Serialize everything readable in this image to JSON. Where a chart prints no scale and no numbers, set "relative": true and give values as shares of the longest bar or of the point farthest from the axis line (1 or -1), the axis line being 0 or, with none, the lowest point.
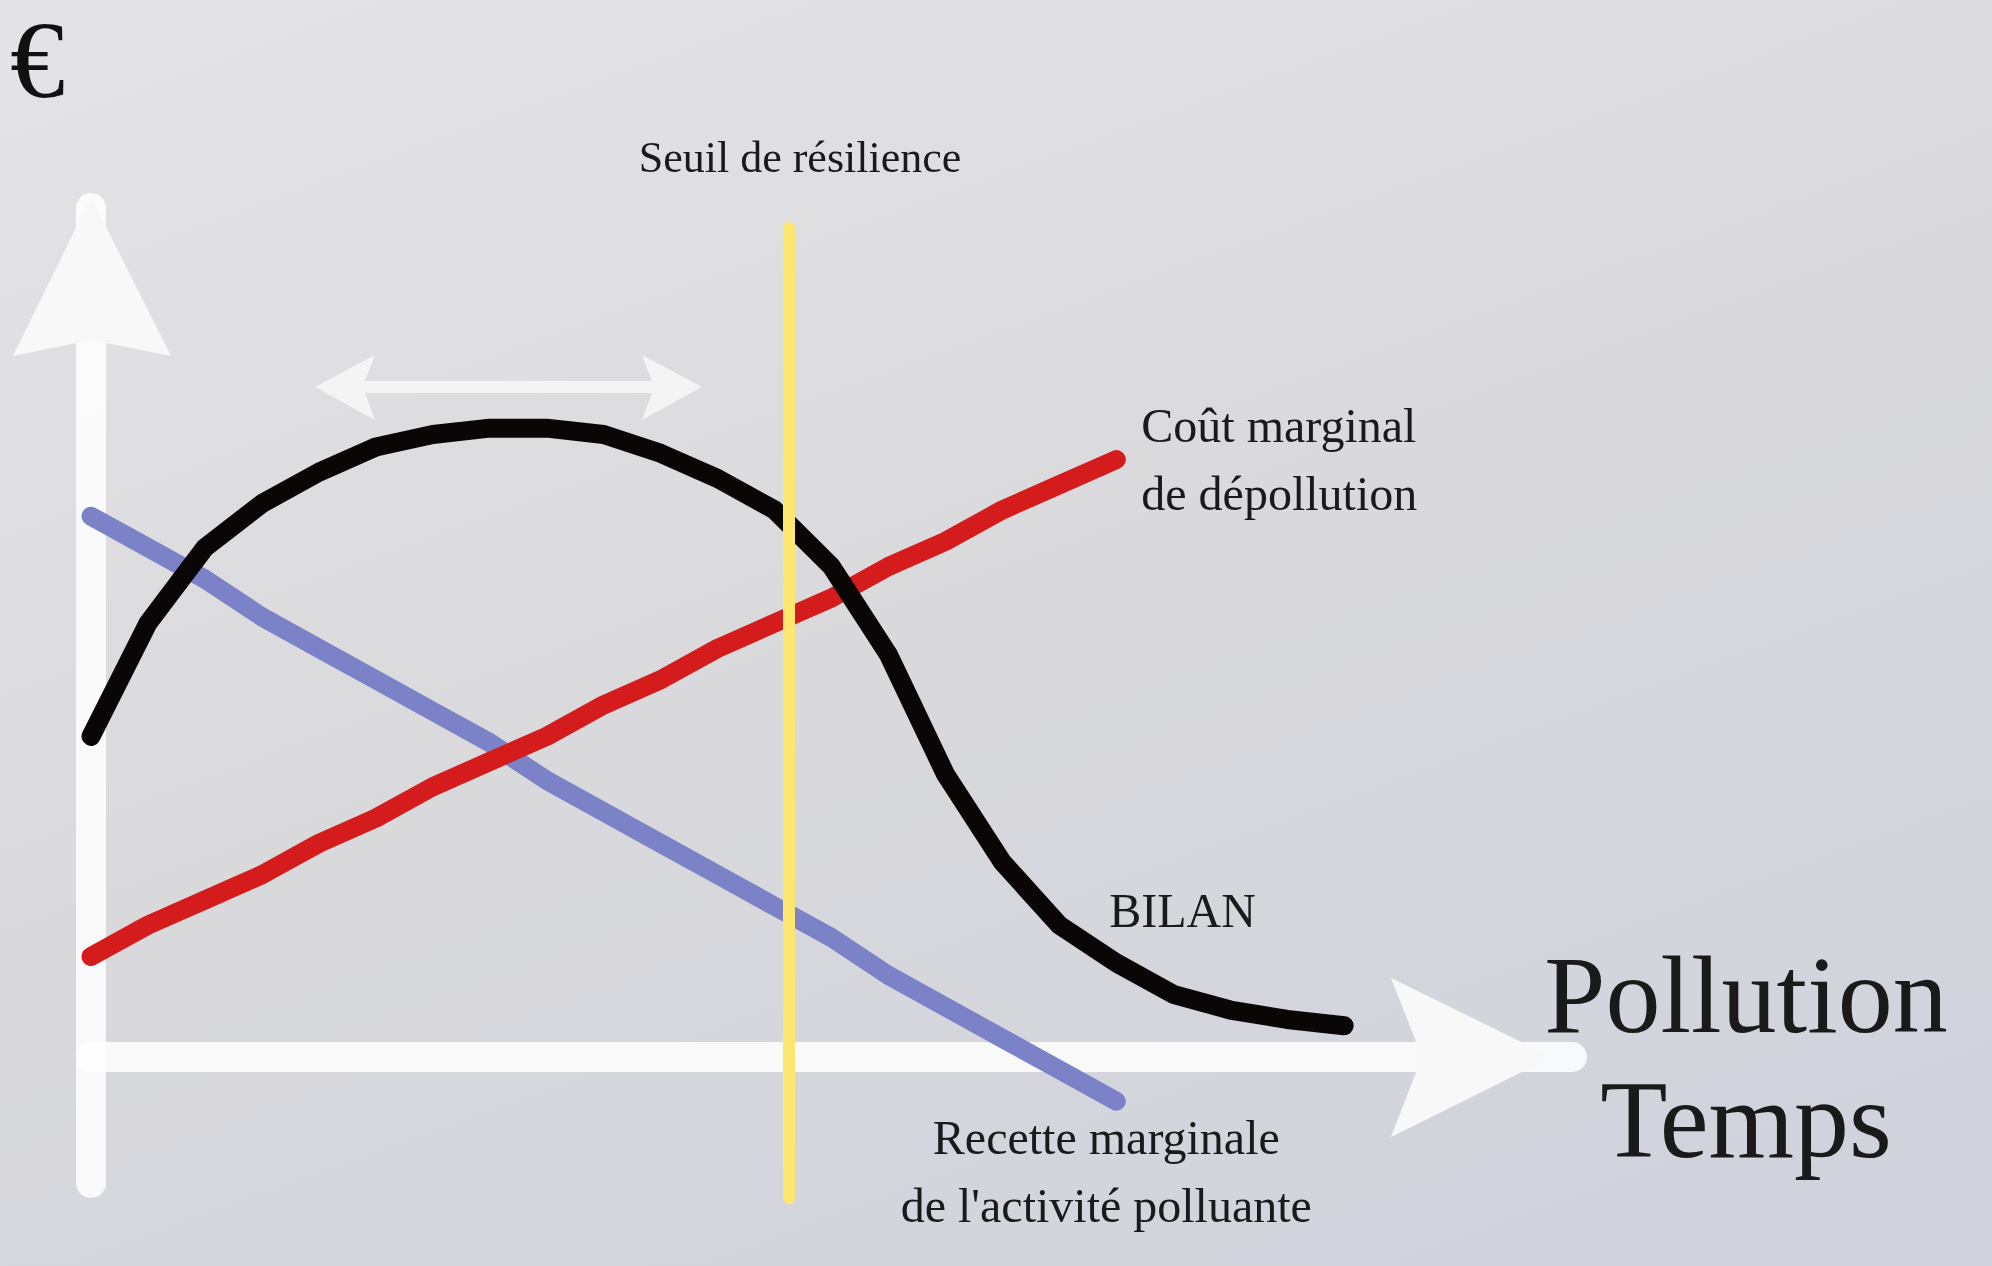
{
  "chart_data": {
    "type": "line",
    "relative": true,
    "xlabel": "Pollution\nTemps",
    "ylabel": "€",
    "legend": false,
    "grid": false,
    "marker": "none",
    "line_style": "solid",
    "categories": [
      null,
      null,
      null,
      null,
      null,
      null,
      null,
      null,
      null,
      null,
      null,
      null,
      null,
      null,
      null,
      null,
      null,
      null,
      null,
      null,
      null,
      null,
      null,
      null,
      null,
      null,
      null
    ],
    "series": [
      {
        "name": "BILAN",
        "color": "#0a0605",
        "values": [
          0.51,
          0.69,
          0.81,
          0.88,
          0.93,
          0.97,
          0.99,
          1,
          1,
          0.99,
          0.96,
          0.92,
          0.87,
          0.78,
          0.64,
          0.45,
          0.31,
          0.21,
          0.15,
          0.1,
          0.075,
          0.06,
          0.05,
          null,
          null,
          null,
          null
        ]
      },
      {
        "name": "Coût marginal\nde dépollution",
        "color": "#d41c1c",
        "values": [
          0.16,
          0.21,
          0.25,
          0.29,
          0.34,
          0.38,
          0.43,
          0.47,
          0.51,
          0.56,
          0.6,
          0.65,
          0.69,
          0.73,
          0.78,
          0.82,
          0.87,
          0.91,
          0.95,
          null,
          null,
          null,
          null,
          null,
          null,
          null,
          null
        ]
      },
      {
        "name": "Recette marginale\nde l'activité polluante",
        "color": "#7b82c8",
        "values": [
          0.86,
          0.81,
          0.76,
          0.7,
          0.65,
          0.6,
          0.55,
          0.5,
          0.44,
          0.39,
          0.34,
          0.29,
          0.24,
          0.19,
          0.13,
          0.08,
          0.03,
          -0.02,
          -0.07,
          null,
          null,
          null,
          null,
          null,
          null,
          null,
          null
        ]
      }
    ],
    "annotations": [
      "Seuil de résilience"
    ]
  }
}
